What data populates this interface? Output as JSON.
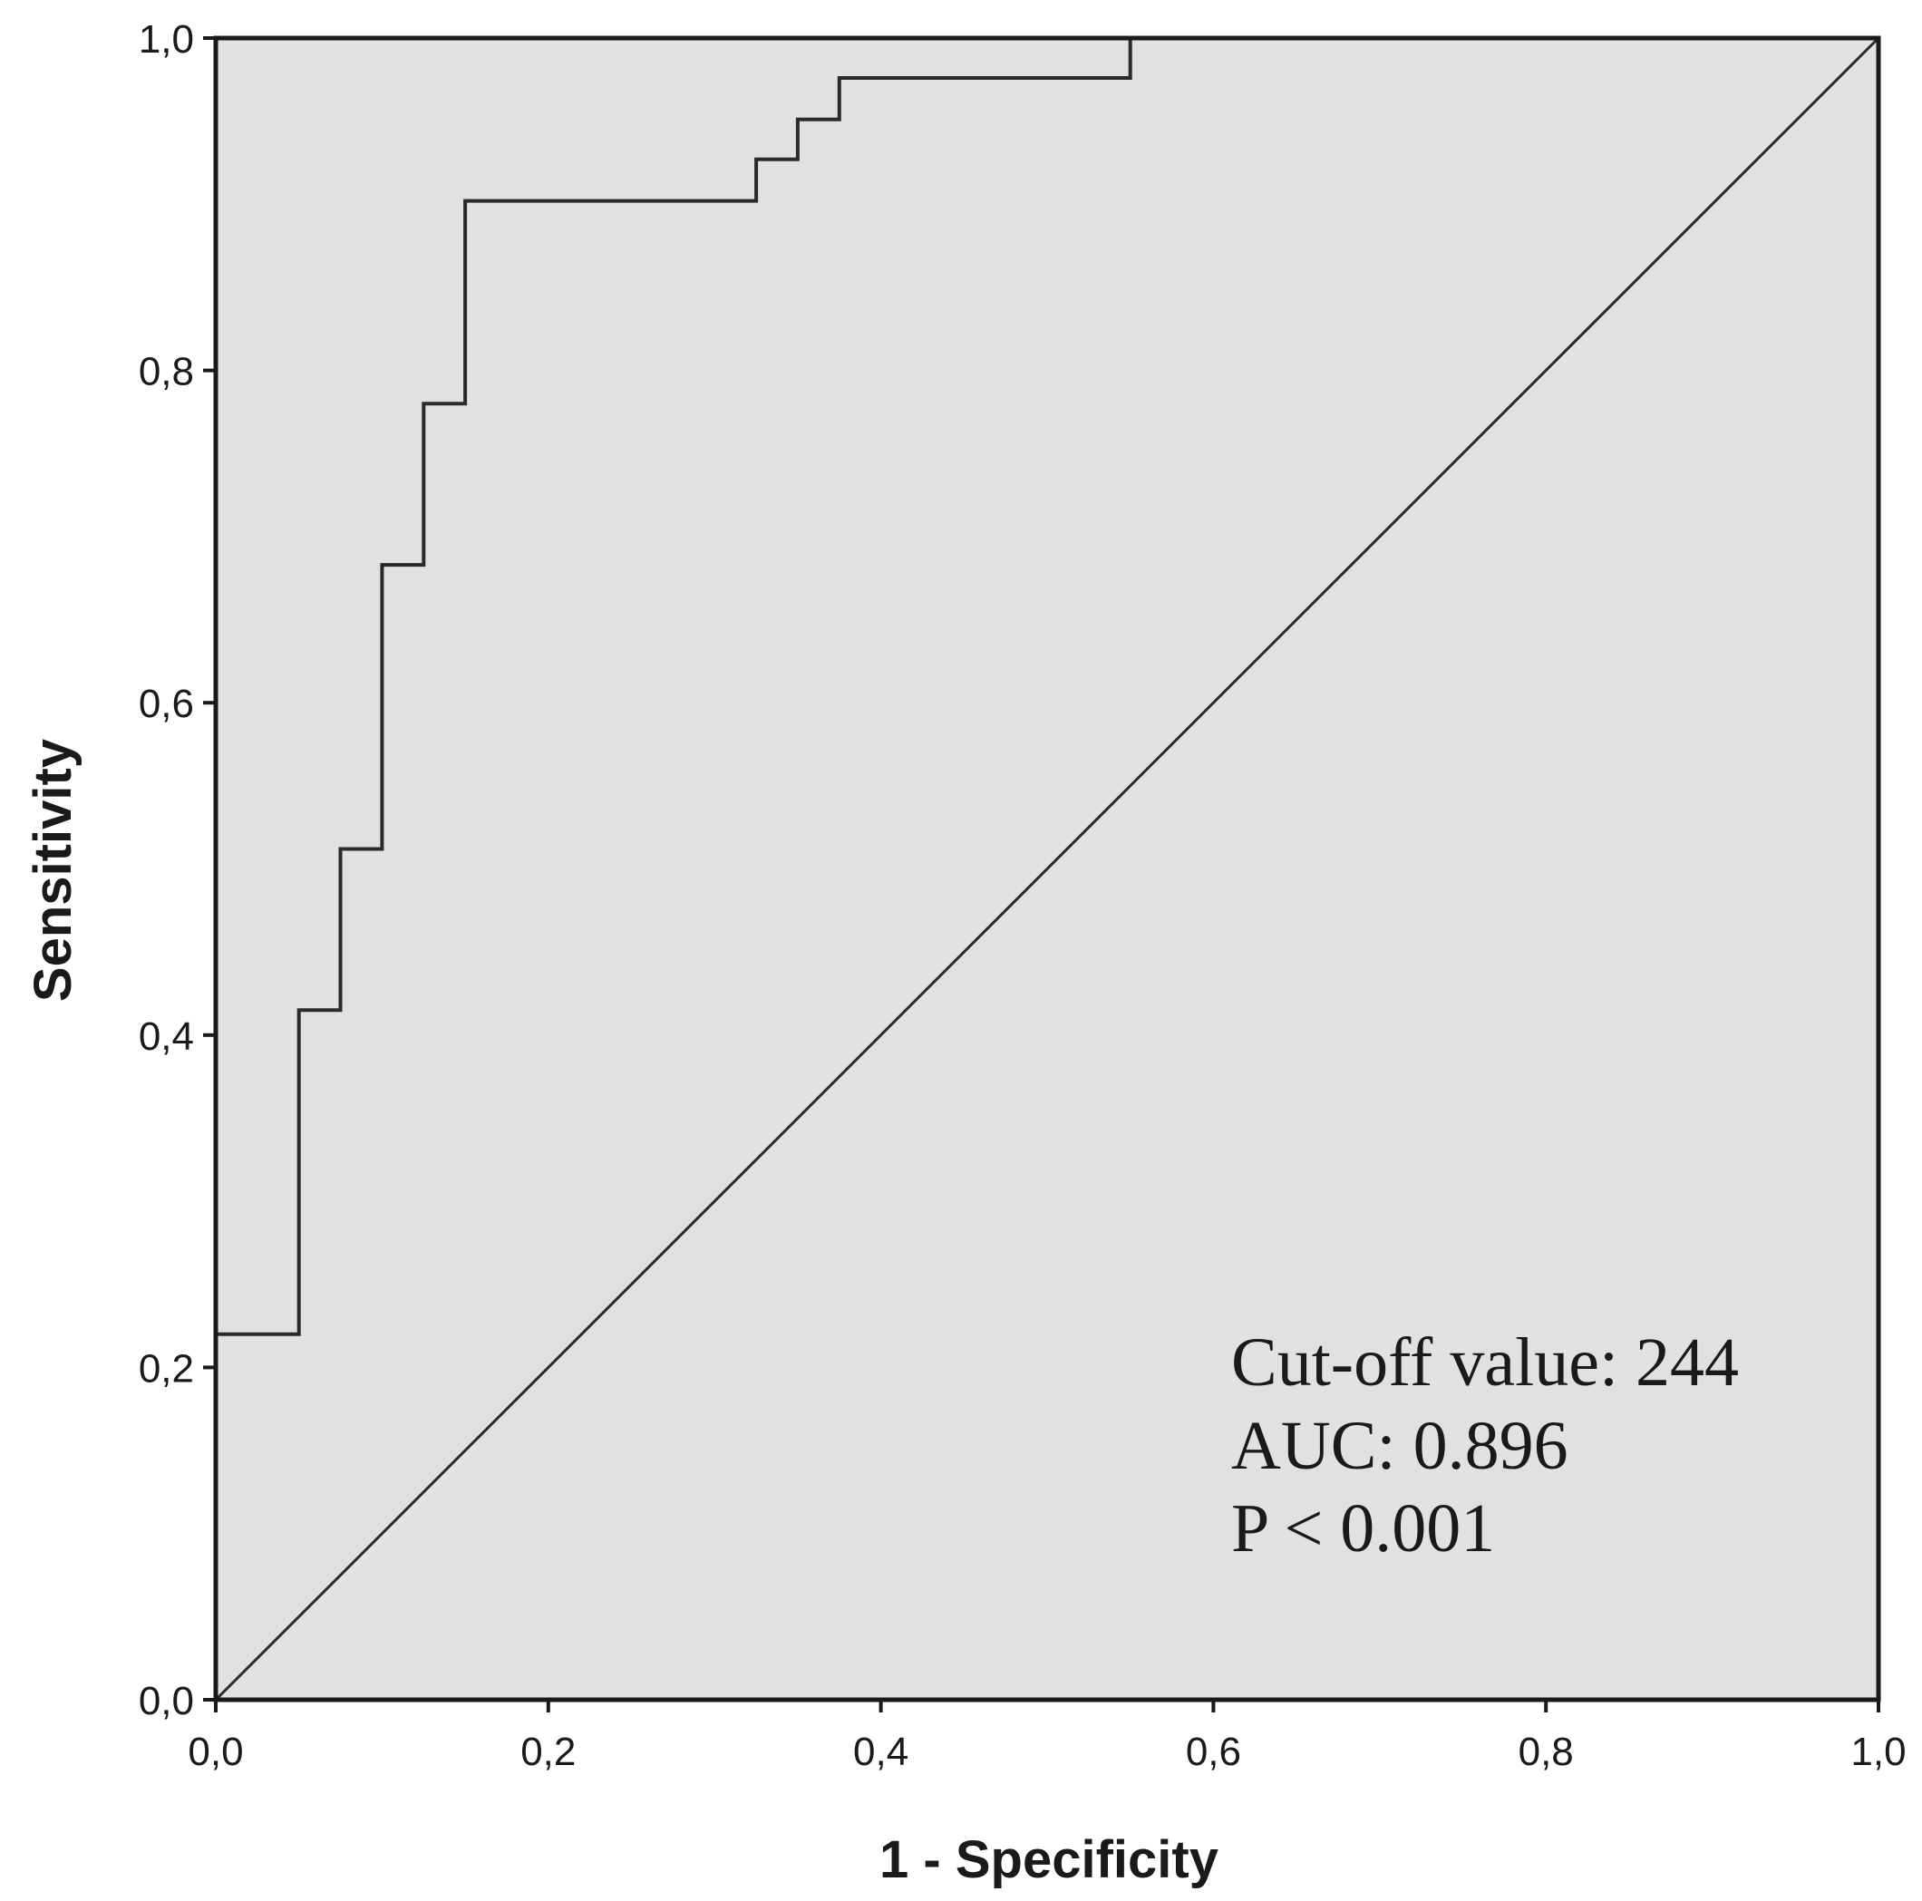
{
  "chart_data": {
    "type": "line",
    "xlabel": "1 - Specificity",
    "ylabel": "Sensitivity",
    "xlim": [
      0.0,
      1.0
    ],
    "ylim": [
      0.0,
      1.0
    ],
    "x_ticks": [
      {
        "value": 0.0,
        "label": "0,0"
      },
      {
        "value": 0.2,
        "label": "0,2"
      },
      {
        "value": 0.4,
        "label": "0,4"
      },
      {
        "value": 0.6,
        "label": "0,6"
      },
      {
        "value": 0.8,
        "label": "0,8"
      },
      {
        "value": 1.0,
        "label": "1,0"
      }
    ],
    "y_ticks": [
      {
        "value": 0.0,
        "label": "0,0"
      },
      {
        "value": 0.2,
        "label": "0,2"
      },
      {
        "value": 0.4,
        "label": "0,4"
      },
      {
        "value": 0.6,
        "label": "0,6"
      },
      {
        "value": 0.8,
        "label": "0,8"
      },
      {
        "value": 1.0,
        "label": "1,0"
      }
    ],
    "grid": false,
    "legend": "none",
    "background_color": "#e1e1e1",
    "line_color": "#2a2a2a",
    "series": [
      {
        "x": [
          0.0,
          0.0,
          0.05,
          0.05,
          0.075,
          0.075,
          0.1,
          0.1,
          0.125,
          0.125,
          0.15,
          0.15,
          0.325,
          0.325,
          0.35,
          0.35,
          0.375,
          0.375,
          0.55,
          0.55,
          1.0
        ],
        "y": [
          0.0,
          0.22,
          0.22,
          0.415,
          0.415,
          0.512,
          0.512,
          0.683,
          0.683,
          0.78,
          0.78,
          0.902,
          0.902,
          0.927,
          0.927,
          0.951,
          0.951,
          0.976,
          0.976,
          1.0,
          1.0
        ]
      },
      {
        "x": [
          0.0,
          1.0
        ],
        "y": [
          0.0,
          1.0
        ]
      }
    ],
    "annotations": [
      "Cut-off value: 244",
      "AUC: 0.896",
      "P < 0.001"
    ]
  }
}
